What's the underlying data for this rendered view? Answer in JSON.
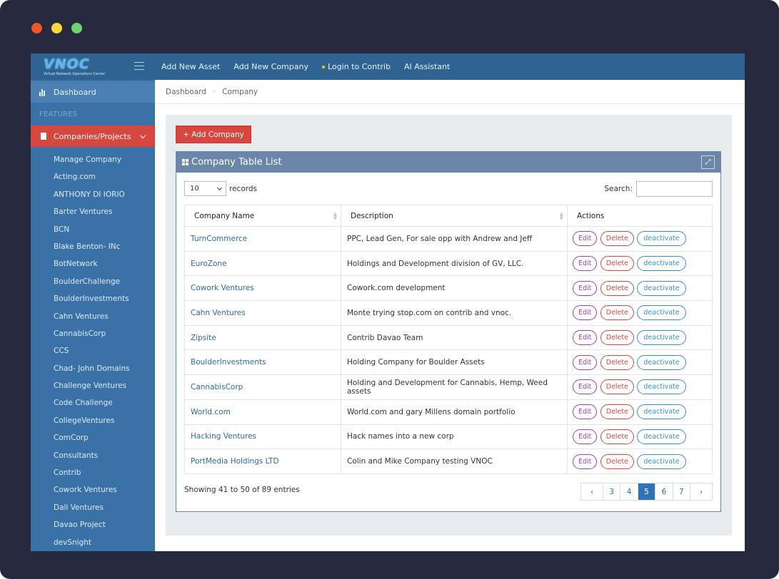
{
  "logo": {
    "text": "VNOC",
    "subtitle": "Virtual Network Operations Center"
  },
  "topnav": [
    {
      "label": "Add New Asset"
    },
    {
      "label": "Add New Company"
    },
    {
      "label": "Login to Contrib"
    },
    {
      "label": "AI Assistant"
    }
  ],
  "sidebar": {
    "dashboard": "Dashboard",
    "features_heading": "FEATURES",
    "active_section": "Companies/Projects",
    "items": [
      "Manage Company",
      "Acting.com",
      "ANTHONY DI IORIO",
      "Barter Ventures",
      "BCN",
      "Blake Benton- INc",
      "BotNetwork",
      "BoulderChallenge",
      "BoulderInvestments",
      "Cahn Ventures",
      "CannabisCorp",
      "CCS",
      "Chad- John Domains",
      "Challenge Ventures",
      "Code Challenge",
      "CollegeVentures",
      "ComCorp",
      "Consultants",
      "Contrib",
      "Cowork Ventures",
      "Dali Ventures",
      "Davao Project",
      "devSnight"
    ]
  },
  "breadcrumb": {
    "home": "Dashboard",
    "sep": "◦",
    "current": "Company"
  },
  "add_button": "+ Add Company",
  "panel": {
    "title": "Company Table List",
    "expand_glyph": "⤢"
  },
  "controls": {
    "page_size": "10",
    "records_label": "records",
    "search_label": "Search:",
    "search_value": ""
  },
  "table": {
    "columns": [
      "Company Name",
      "Description",
      "Actions"
    ],
    "actions": {
      "edit": "Edit",
      "delete": "Delete",
      "deactivate": "deactivate"
    },
    "rows": [
      {
        "name": "TurnCommerce",
        "description": "PPC, Lead Gen, For sale opp with Andrew and Jeff"
      },
      {
        "name": "EuroZone",
        "description": "Holdings and Development division of GV, LLC."
      },
      {
        "name": "Cowork Ventures",
        "description": "Cowork.com development"
      },
      {
        "name": "Cahn Ventures",
        "description": "Monte trying stop.com on contrib and vnoc."
      },
      {
        "name": "Zipsite",
        "description": "Contrib Davao Team"
      },
      {
        "name": "BoulderInvestments",
        "description": "Holding Company for Boulder Assets"
      },
      {
        "name": "CannabisCorp",
        "description": "Holding and Development for Cannabis, Hemp, Weed assets"
      },
      {
        "name": "World.com",
        "description": "World.com and gary Millens domain portfolio"
      },
      {
        "name": "Hacking Ventures",
        "description": "Hack names into a new corp"
      },
      {
        "name": "PortMedia Holdings LTD",
        "description": "Colin and Mike Company testing VNOC"
      }
    ]
  },
  "footer": {
    "info": "Showing 41 to 50 of 89 entries",
    "pages": [
      "‹",
      "3",
      "4",
      "5",
      "6",
      "7",
      "›"
    ],
    "active_page": "5"
  },
  "colors": {
    "topbar": "#2f6391",
    "sidebar": "#3a72a8",
    "accent_red": "#d8473f",
    "panel_header": "#6b86a8"
  }
}
